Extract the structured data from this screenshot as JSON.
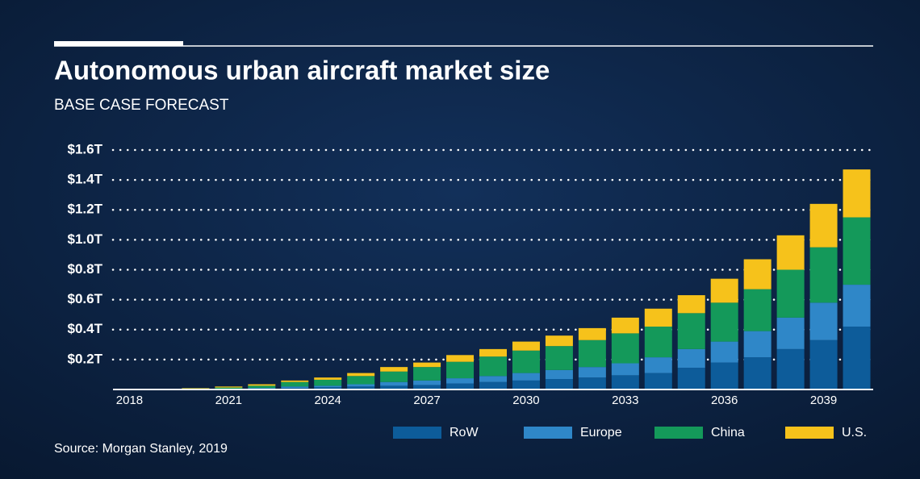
{
  "chart_data": {
    "type": "stacked-bar",
    "title": "Autonomous urban aircraft market size",
    "subtitle": "BASE CASE FORECAST",
    "source": "Source: Morgan Stanley, 2019",
    "categories": [
      "2018",
      null,
      null,
      "2021",
      null,
      null,
      "2024",
      null,
      null,
      "2027",
      null,
      null,
      "2030",
      null,
      null,
      "2033",
      null,
      null,
      "2036",
      null,
      null,
      "2039",
      null
    ],
    "series": [
      {
        "name": "RoW",
        "color": "#0d5c9a",
        "values": [
          0.001,
          0.001,
          0.002,
          0.003,
          0.005,
          0.01,
          0.015,
          0.02,
          0.025,
          0.03,
          0.04,
          0.05,
          0.06,
          0.07,
          0.08,
          0.095,
          0.11,
          0.145,
          0.18,
          0.215,
          0.27,
          0.33,
          0.42
        ]
      },
      {
        "name": "Europe",
        "color": "#2f87c8",
        "values": [
          0,
          0.001,
          0.001,
          0.002,
          0.005,
          0.01,
          0.01,
          0.015,
          0.025,
          0.03,
          0.035,
          0.04,
          0.05,
          0.06,
          0.07,
          0.08,
          0.105,
          0.125,
          0.14,
          0.175,
          0.21,
          0.25,
          0.28
        ]
      },
      {
        "name": "China",
        "color": "#14995a",
        "values": [
          0.001,
          0.002,
          0.004,
          0.008,
          0.015,
          0.03,
          0.04,
          0.055,
          0.07,
          0.09,
          0.11,
          0.13,
          0.15,
          0.16,
          0.18,
          0.2,
          0.205,
          0.24,
          0.26,
          0.28,
          0.32,
          0.37,
          0.45
        ]
      },
      {
        "name": "U.S.",
        "color": "#f6c21b",
        "values": [
          0.0005,
          0.001,
          0.003,
          0.007,
          0.01,
          0.01,
          0.015,
          0.02,
          0.03,
          0.03,
          0.045,
          0.05,
          0.06,
          0.07,
          0.08,
          0.105,
          0.12,
          0.12,
          0.16,
          0.2,
          0.23,
          0.29,
          0.32
        ]
      }
    ],
    "ylim": [
      0,
      1.6
    ],
    "yticks": [
      {
        "value": 0.2,
        "label": "$0.2T"
      },
      {
        "value": 0.4,
        "label": "$0.4T"
      },
      {
        "value": 0.6,
        "label": "$0.6T"
      },
      {
        "value": 0.8,
        "label": "$0.8T"
      },
      {
        "value": 1.0,
        "label": "$1.0T"
      },
      {
        "value": 1.2,
        "label": "$1.2T"
      },
      {
        "value": 1.4,
        "label": "$1.4T"
      },
      {
        "value": 1.6,
        "label": "$1.6T"
      }
    ],
    "grid": true
  }
}
